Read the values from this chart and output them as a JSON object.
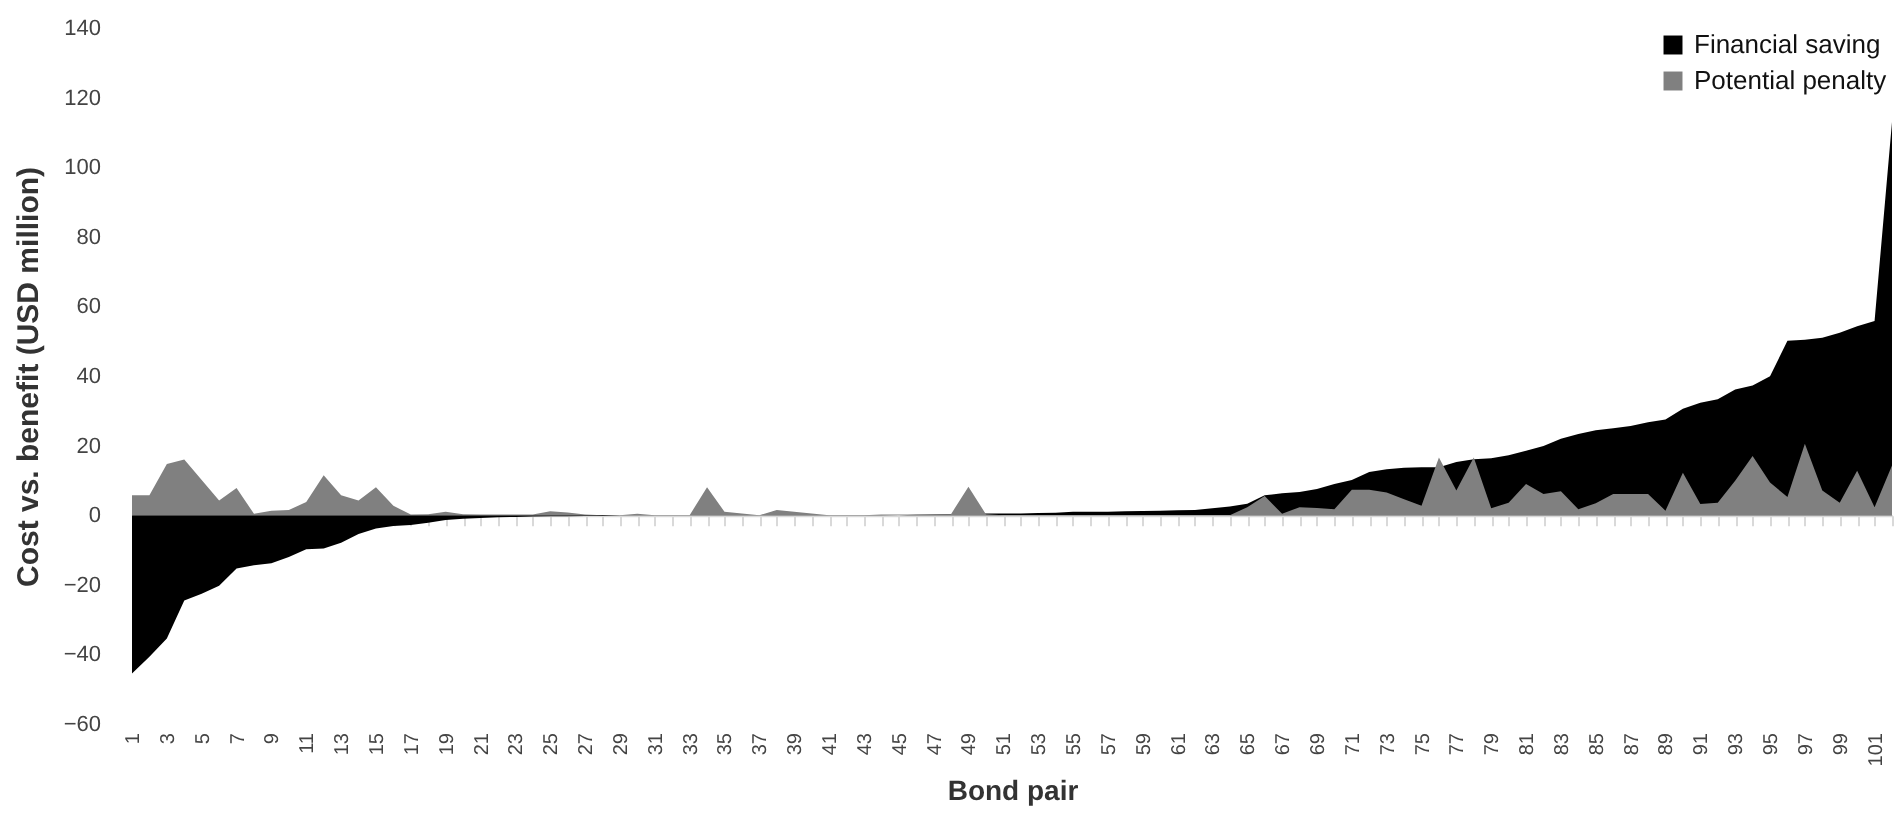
{
  "chart_data": {
    "type": "area",
    "xlabel": "Bond pair",
    "ylabel": "Cost vs. benefit (USD million)",
    "categories": [
      "1",
      null,
      "3",
      null,
      "5",
      null,
      "7",
      null,
      "9",
      null,
      "11",
      null,
      "13",
      null,
      "15",
      null,
      "17",
      null,
      "19",
      null,
      "21",
      null,
      "23",
      null,
      "25",
      null,
      "27",
      null,
      "29",
      null,
      "31",
      null,
      "33",
      null,
      "35",
      null,
      "37",
      null,
      "39",
      null,
      "41",
      null,
      "43",
      null,
      "45",
      null,
      "47",
      null,
      "49",
      null,
      "51",
      null,
      "53",
      null,
      "55",
      null,
      "57",
      null,
      "59",
      null,
      "61",
      null,
      "63",
      null,
      "65",
      null,
      "67",
      null,
      "69",
      null,
      "71",
      null,
      "73",
      null,
      "75",
      null,
      "77",
      null,
      "79",
      null,
      "81",
      null,
      "83",
      null,
      "85",
      null,
      "87",
      null,
      "89",
      null,
      "91",
      null,
      "93",
      null,
      "95",
      null,
      "97",
      null,
      "99",
      null,
      "101",
      null
    ],
    "series": [
      {
        "name": "Financial saving",
        "color": "#000000",
        "values": [
          -45.5,
          -40.7,
          -35.4,
          -24.5,
          -22.6,
          -20.3,
          -15.3,
          -14.4,
          -13.8,
          -12,
          -9.8,
          -9.6,
          -7.9,
          -5.4,
          -3.8,
          -3.1,
          -2.8,
          -2.2,
          -1.4,
          -1,
          -0.8,
          -0.6,
          -0.5,
          -0.4,
          -0.3,
          -0.3,
          -0.2,
          -0.2,
          -0.1,
          -0.1,
          -0.1,
          -0.1,
          -0.1,
          -0.1,
          -0.1,
          -0.1,
          -0.1,
          -0.1,
          -0.1,
          -0.1,
          -0.1,
          -0.1,
          -0.1,
          -0.1,
          0,
          0.1,
          0.2,
          0.3,
          0.3,
          0.5,
          0.5,
          0.5,
          0.6,
          0.7,
          1,
          1,
          1,
          1.1,
          1.2,
          1.3,
          1.4,
          1.5,
          2,
          2.5,
          3.3,
          5.7,
          6.3,
          6.7,
          7.5,
          9,
          10.1,
          12.4,
          13.2,
          13.6,
          13.8,
          13.8,
          15.3,
          16.1,
          16.4,
          17.2,
          18.5,
          19.9,
          22,
          23.3,
          24.4,
          25,
          25.6,
          26.7,
          27.5,
          30.6,
          32.3,
          33.3,
          36.1,
          37.3,
          39.9,
          50.1,
          50.4,
          51,
          52.4,
          54.3,
          55.8,
          113
        ]
      },
      {
        "name": "Potential penalty",
        "color": "#808080",
        "values": [
          5.7,
          5.7,
          14.7,
          16,
          10.1,
          4.2,
          7.8,
          0.4,
          1.3,
          1.5,
          3.8,
          11.5,
          5.7,
          4.2,
          8,
          2.7,
          0.2,
          0.3,
          1,
          0.3,
          0.2,
          0.2,
          0.2,
          0.2,
          1.1,
          0.8,
          0.2,
          0,
          0,
          0.4,
          0,
          0,
          0,
          8,
          1,
          0.5,
          0,
          1.5,
          1,
          0.5,
          0,
          0,
          0,
          0.2,
          0.2,
          0.2,
          0.2,
          0.3,
          8.2,
          0.3,
          0,
          0,
          0,
          0,
          0,
          0,
          0,
          0,
          0,
          0,
          0,
          0,
          0,
          0,
          2.3,
          5.5,
          0.4,
          2.3,
          2.1,
          1.7,
          7.3,
          7.3,
          6.5,
          4.6,
          2.7,
          16.6,
          7.1,
          16.6,
          2,
          3.6,
          9,
          6.1,
          6.9,
          1.7,
          3.4,
          6.1,
          6.1,
          6.1,
          1.3,
          12.2,
          3.2,
          3.6,
          9.9,
          17,
          9.4,
          5.2,
          20.5,
          7.1,
          3.6,
          12.8,
          2.3,
          14.3
        ]
      }
    ],
    "ylim": [
      -60,
      140
    ],
    "yticks": [
      -60,
      -40,
      -20,
      0,
      20,
      40,
      60,
      80,
      100,
      120,
      140
    ],
    "legend": "top right"
  }
}
